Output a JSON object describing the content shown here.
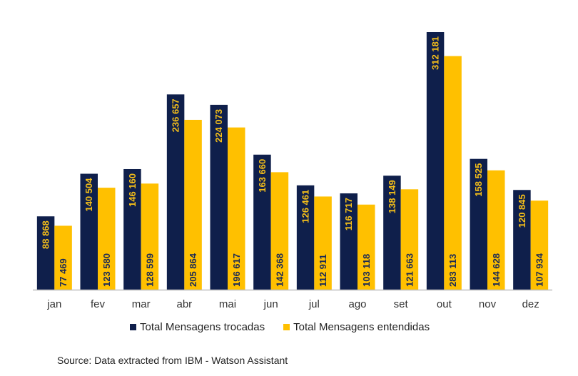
{
  "chart_data": {
    "type": "bar",
    "categories": [
      "jan",
      "fev",
      "mar",
      "abr",
      "mai",
      "jun",
      "jul",
      "ago",
      "set",
      "out",
      "nov",
      "dez"
    ],
    "series": [
      {
        "name": "Total Mensagens trocadas",
        "color": "#0f1f4b",
        "label_color": "#f5bf19",
        "values": [
          88868,
          140504,
          146160,
          236657,
          224073,
          163660,
          126461,
          116717,
          138149,
          312181,
          158525,
          120845
        ],
        "labels": [
          "88 868",
          "140 504",
          "146 160",
          "236 657",
          "224 073",
          "163 660",
          "126 461",
          "116 717",
          "138 149",
          "312 181",
          "158 525",
          "120 845"
        ]
      },
      {
        "name": "Total Mensagens entendidas",
        "color": "#ffc000",
        "label_color": "#1b2a55",
        "values": [
          77469,
          123580,
          128599,
          205864,
          196617,
          142368,
          112911,
          103118,
          121663,
          283113,
          144628,
          107934
        ],
        "labels": [
          "77 469",
          "123 580",
          "128 599",
          "205 864",
          "196 617",
          "142 368",
          "112 911",
          "103 118",
          "121 663",
          "283 113",
          "144 628",
          "107 934"
        ]
      }
    ],
    "ylim": [
      0,
      312181
    ],
    "grid": false,
    "legend_position": "bottom"
  },
  "source": "Source: Data extracted from IBM - Watson Assistant"
}
